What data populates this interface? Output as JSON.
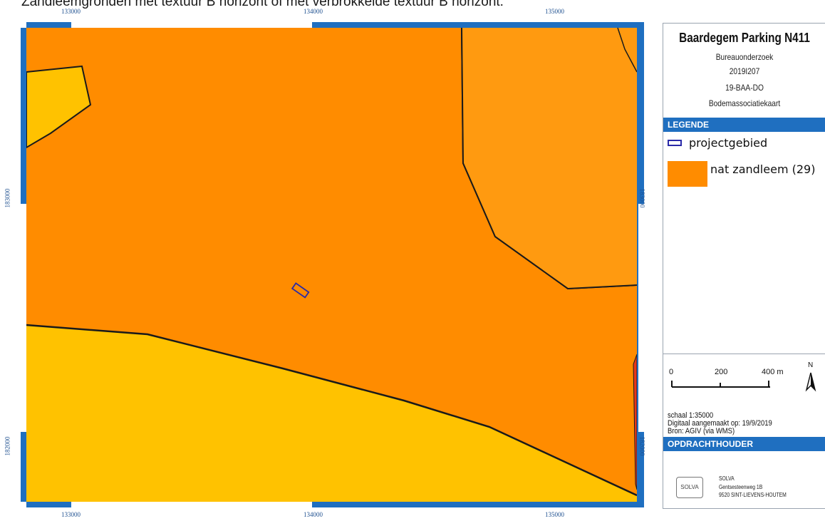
{
  "caption": "Zandleemgronden met textuur B horizont of met verbrokkelde textuur B horizont.",
  "map": {
    "coords_top": [
      "133000",
      "134000",
      "135000"
    ],
    "coords_bottom": [
      "133000",
      "134000",
      "135000"
    ],
    "coords_left": [
      "183000",
      "182000"
    ],
    "coords_right": [
      "183000",
      "182000"
    ],
    "colors": {
      "frame": "#1f6fc0",
      "nat_zandleem": "#ff8c00",
      "light_zone": "#ffc200",
      "red_zone": "#e8361a",
      "projectgebied_outline": "#2a2aa8"
    }
  },
  "panel": {
    "title": "Baardegem Parking N411",
    "subtitle_lines": [
      "Bureauonderzoek",
      "2019I207",
      "19-BAA-DO",
      "Bodemassociatiekaart"
    ],
    "legend_header": "LEGENDE",
    "legend_items": [
      {
        "label": "projectgebied",
        "symbol": "outline-rectangle",
        "color": "#2a2aa8"
      },
      {
        "label": "nat zandleem (29)",
        "symbol": "filled-rectangle",
        "color": "#ff8c00"
      }
    ],
    "scalebar_labels": [
      "0",
      "200",
      "400 m"
    ],
    "north_label": "N",
    "scale_text": "schaal  1:35000",
    "digital_text": "Digitaal aangemaakt op: 19/9/2019",
    "source_text": "Bron: AGIV (via WMS)",
    "client_header": "OPDRACHTHOUDER",
    "client": {
      "logo_text": "SOLVA",
      "name": "SOLVA",
      "street": "Gentsesteenweg 1B",
      "city": "9520 SINT-LIEVENS-HOUTEM"
    }
  }
}
